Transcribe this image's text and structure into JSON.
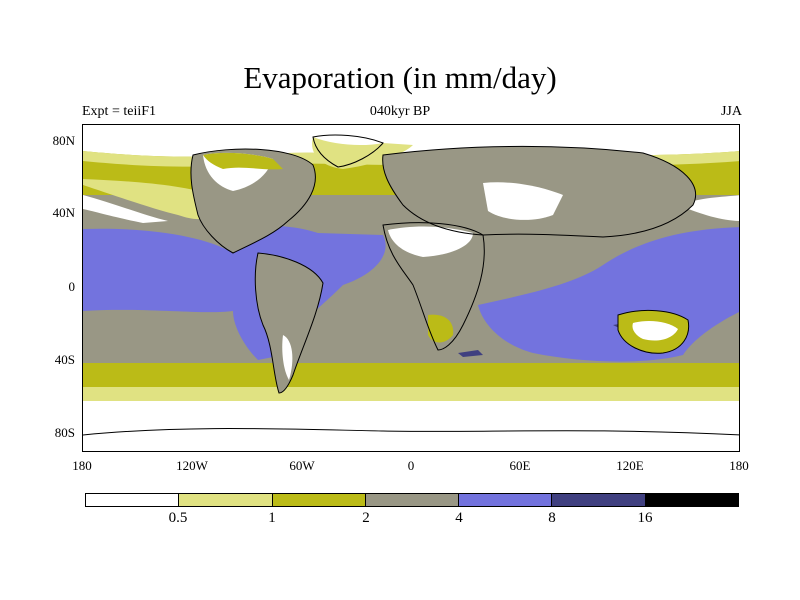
{
  "title": "Evaporation (in mm/day)",
  "experiment_label": "Expt = teiiF1",
  "time_label": "040kyr BP",
  "season_label": "JJA",
  "map": {
    "projection": "cylindrical equidistant",
    "lon_range": [
      -180,
      180
    ],
    "lat_range": [
      -90,
      90
    ],
    "lat_ticks": [
      "80N",
      "40N",
      "0",
      "40S",
      "80S"
    ],
    "lon_ticks": [
      "180",
      "120W",
      "60W",
      "0",
      "60E",
      "120E",
      "180"
    ],
    "coastlines": true
  },
  "colorbar": {
    "colors": [
      "#ffffff",
      "#e0e282",
      "#bbbb17",
      "#999785",
      "#7373de",
      "#404080",
      "#000000"
    ],
    "labels": [
      "0.5",
      "1",
      "2",
      "4",
      "8",
      "16"
    ],
    "units": "mm/day"
  }
}
